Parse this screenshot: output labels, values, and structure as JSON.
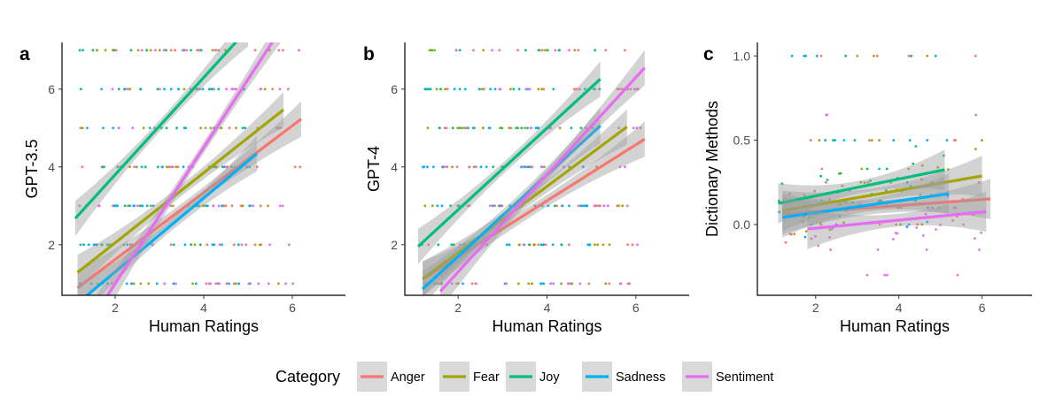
{
  "colors": {
    "Anger": "#F8766D",
    "Fear": "#A3A500",
    "Joy": "#00BF7D",
    "Sadness": "#00B0F6",
    "Sentiment": "#E76BF3",
    "band": "#9e9e9e"
  },
  "legend": {
    "title": "Category",
    "items": [
      "Anger",
      "Fear",
      "Joy",
      "Sadness",
      "Sentiment"
    ]
  },
  "chart_data": [
    {
      "type": "scatter",
      "panel": "a",
      "xlabel": "Human Ratings",
      "ylabel": "GPT-3.5",
      "xlim": [
        0.8,
        7.2
      ],
      "ylim": [
        0.7,
        7.2
      ],
      "xticks": [
        2,
        4,
        6
      ],
      "yticks": [
        2,
        4,
        6
      ],
      "series": [
        {
          "name": "Anger",
          "x_range": [
            1.15,
            6.2
          ],
          "fit": {
            "intercept": -0.1,
            "slope": 0.86
          },
          "y_levels": [
            1,
            2,
            3,
            4,
            5,
            6,
            7
          ]
        },
        {
          "name": "Fear",
          "x_range": [
            1.15,
            5.8
          ],
          "fit": {
            "intercept": 0.25,
            "slope": 0.9
          },
          "y_levels": [
            1,
            2,
            3,
            4,
            5,
            6,
            7
          ]
        },
        {
          "name": "Joy",
          "x_range": [
            1.1,
            5.0
          ],
          "fit": {
            "intercept": 1.3,
            "slope": 1.25
          },
          "y_levels": [
            2,
            3,
            4,
            5,
            6,
            7
          ]
        },
        {
          "name": "Sadness",
          "x_range": [
            1.15,
            5.2
          ],
          "fit": {
            "intercept": -0.6,
            "slope": 0.95
          },
          "y_levels": [
            1,
            2,
            3,
            4,
            5,
            6
          ]
        },
        {
          "name": "Sentiment",
          "x_range": [
            1.6,
            6.2
          ],
          "fit": {
            "intercept": -2.5,
            "slope": 1.75
          },
          "y_levels": [
            1,
            2,
            3,
            4,
            5,
            6,
            7
          ]
        }
      ]
    },
    {
      "type": "scatter",
      "panel": "b",
      "xlabel": "Human Ratings",
      "ylabel": "GPT-4",
      "xlim": [
        0.8,
        7.2
      ],
      "ylim": [
        0.7,
        7.2
      ],
      "xticks": [
        2,
        4,
        6
      ],
      "yticks": [
        2,
        4,
        6
      ],
      "series": [
        {
          "name": "Anger",
          "x_range": [
            1.2,
            6.2
          ],
          "fit": {
            "intercept": 0.25,
            "slope": 0.72
          },
          "y_levels": [
            1,
            2,
            3,
            4,
            5,
            6,
            7
          ]
        },
        {
          "name": "Fear",
          "x_range": [
            1.2,
            5.8
          ],
          "fit": {
            "intercept": 0.1,
            "slope": 0.85
          },
          "y_levels": [
            1,
            2,
            3,
            4,
            5,
            6,
            7
          ]
        },
        {
          "name": "Joy",
          "x_range": [
            1.1,
            5.2
          ],
          "fit": {
            "intercept": 0.8,
            "slope": 1.05
          },
          "y_levels": [
            2,
            3,
            4,
            5,
            6,
            7
          ]
        },
        {
          "name": "Sadness",
          "x_range": [
            1.2,
            5.2
          ],
          "fit": {
            "intercept": -0.4,
            "slope": 1.05
          },
          "y_levels": [
            1,
            2,
            3,
            4,
            5,
            6
          ]
        },
        {
          "name": "Sentiment",
          "x_range": [
            1.6,
            6.2
          ],
          "fit": {
            "intercept": -1.2,
            "slope": 1.25
          },
          "y_levels": [
            1,
            2,
            3,
            4,
            5,
            6,
            7
          ]
        }
      ]
    },
    {
      "type": "scatter",
      "panel": "c",
      "xlabel": "Human Ratings",
      "ylabel": "Dictionary Methods",
      "xlim": [
        0.6,
        7.2
      ],
      "ylim": [
        -0.42,
        1.08
      ],
      "xticks": [
        2,
        4,
        6
      ],
      "yticks": [
        0.0,
        0.5,
        1.0
      ],
      "ytick_labels": [
        "0.0",
        "0.5",
        "1.0"
      ],
      "series": [
        {
          "name": "Anger",
          "x_range": [
            1.2,
            6.2
          ],
          "fit": {
            "intercept": 0.04,
            "slope": 0.018
          },
          "y_levels": [
            0,
            0.1,
            0.25,
            0.33,
            0.5,
            1.0
          ]
        },
        {
          "name": "Fear",
          "x_range": [
            1.2,
            6.0
          ],
          "fit": {
            "intercept": 0.03,
            "slope": 0.043
          },
          "y_levels": [
            0,
            0.1,
            0.25,
            0.33,
            0.5,
            1.0
          ]
        },
        {
          "name": "Joy",
          "x_range": [
            1.1,
            5.1
          ],
          "fit": {
            "intercept": 0.07,
            "slope": 0.05
          },
          "y_levels": [
            0,
            0.14,
            0.25,
            0.33,
            0.5,
            1.0
          ]
        },
        {
          "name": "Sadness",
          "x_range": [
            1.2,
            5.2
          ],
          "fit": {
            "intercept": 0.0,
            "slope": 0.035
          },
          "y_levels": [
            0,
            0.1,
            0.25,
            0.33,
            0.5,
            1.0
          ]
        },
        {
          "name": "Sentiment",
          "x_range": [
            1.8,
            6.1
          ],
          "fit": {
            "intercept": -0.07,
            "slope": 0.024
          },
          "y_levels": [
            -0.3,
            -0.15,
            -0.05,
            0,
            0.1,
            0.2,
            0.65
          ]
        }
      ]
    }
  ]
}
